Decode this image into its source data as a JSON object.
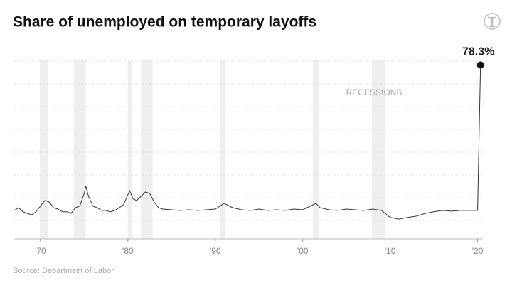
{
  "chart_data": {
    "type": "line",
    "title": "Share of unemployed on temporary layoffs",
    "source": "Source: Department of Labor",
    "recession_label": "RECESSIONS",
    "recessions": [
      [
        1969.92,
        1970.83
      ],
      [
        1973.83,
        1975.17
      ],
      [
        1980.0,
        1980.5
      ],
      [
        1981.5,
        1982.83
      ],
      [
        1990.5,
        1991.17
      ],
      [
        2001.17,
        2001.83
      ],
      [
        2007.92,
        2009.42
      ]
    ],
    "annotation": "78.3%",
    "color": "#333333",
    "xlim": [
      1967,
      2020.6
    ],
    "ylim": [
      0,
      80
    ],
    "xticks": [
      {
        "value": 1970,
        "label": "'70"
      },
      {
        "value": 1980,
        "label": "'80"
      },
      {
        "value": 1990,
        "label": "'90"
      },
      {
        "value": 2000,
        "label": "'00"
      },
      {
        "value": 2010,
        "label": "'10"
      },
      {
        "value": 2020,
        "label": "'20"
      }
    ],
    "yticks": [
      10,
      20,
      30,
      40,
      50,
      60,
      70,
      80
    ],
    "grid": true,
    "x": [
      1967.0,
      1967.5,
      1968.0,
      1968.5,
      1969.0,
      1969.5,
      1970.0,
      1970.5,
      1971.0,
      1971.5,
      1972.0,
      1972.5,
      1973.0,
      1973.5,
      1974.0,
      1974.5,
      1975.0,
      1975.2,
      1975.5,
      1976.0,
      1976.5,
      1977.0,
      1977.5,
      1978.0,
      1978.5,
      1979.0,
      1979.5,
      1980.2,
      1980.6,
      1981.0,
      1981.5,
      1982.0,
      1982.5,
      1983.0,
      1983.5,
      1984.0,
      1985.0,
      1986.0,
      1987.0,
      1988.0,
      1989.0,
      1990.0,
      1991.0,
      1992.0,
      1993.0,
      1994.0,
      1995.0,
      1996.0,
      1997.0,
      1998.0,
      1999.0,
      2000.0,
      2001.5,
      2002.0,
      2003.0,
      2004.0,
      2005.0,
      2006.0,
      2007.0,
      2008.0,
      2009.0,
      2010.0,
      2011.0,
      2012.0,
      2013.0,
      2014.0,
      2015.0,
      2016.0,
      2017.0,
      2018.0,
      2019.0,
      2020.0,
      2020.33
    ],
    "values": [
      14.4,
      15.6,
      13.8,
      13.1,
      12.5,
      13.8,
      16.3,
      18.8,
      18.1,
      15.6,
      15.0,
      13.8,
      13.8,
      13.1,
      15.6,
      16.3,
      21.9,
      25.0,
      20.6,
      16.3,
      15.6,
      14.4,
      14.4,
      13.8,
      14.4,
      15.6,
      16.9,
      23.1,
      19.4,
      18.8,
      20.6,
      22.5,
      21.9,
      18.1,
      15.6,
      15.0,
      14.7,
      14.4,
      14.7,
      14.4,
      14.7,
      15.0,
      17.5,
      15.6,
      14.7,
      14.4,
      15.0,
      14.4,
      14.7,
      14.4,
      15.0,
      14.7,
      17.5,
      15.6,
      14.7,
      14.4,
      15.0,
      14.7,
      14.4,
      15.0,
      14.4,
      11.3,
      10.6,
      11.3,
      11.9,
      13.1,
      13.8,
      14.4,
      14.1,
      14.4,
      14.4,
      14.4,
      78.3
    ]
  }
}
